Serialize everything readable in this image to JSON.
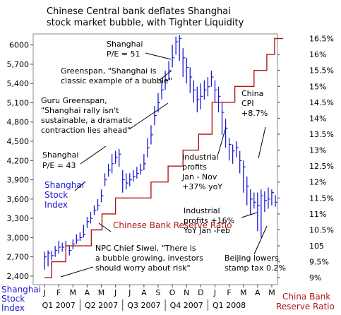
{
  "chart_data": {
    "type": "line",
    "title": "Chinese Central bank deflates Shanghai stock market bubble, with Tighter Liquidity",
    "title_lines": [
      "Chinese Central bank deflates Shanghai",
      "stock market bubble, with Tighter Liquidity"
    ],
    "left_axis": {
      "ticks": [
        "6000",
        "5,700",
        "5,400",
        "5,100",
        "4,800",
        "4,500",
        "4,200",
        "3,900",
        "3,600",
        "3,300",
        "3,000",
        "2,700",
        "2,400"
      ],
      "ylim": [
        2300,
        6150
      ],
      "label_lines": [
        "Shanghai",
        "Stock",
        "Index"
      ]
    },
    "right_axis": {
      "ticks": [
        "16.5%",
        "16%",
        "15.5%",
        "15%",
        "14.5%",
        "14%",
        "13.5%",
        "13%",
        "12.5%",
        "12%",
        "11.5%",
        "11%",
        "10.5%",
        "105",
        "9.5%",
        "9%"
      ],
      "ylim": [
        8.85,
        16.6
      ],
      "label_lines": [
        "China Bank",
        "Reserve Ratio"
      ]
    },
    "x_axis": {
      "months": [
        "J",
        "F",
        "M",
        "A",
        "M",
        "J",
        "J",
        "A",
        "S",
        "O",
        "N",
        "D",
        "J",
        "F",
        "M",
        "A",
        "M"
      ],
      "quarters": [
        "Q1 2007",
        "Q2 2007",
        "Q3 2007",
        "Q4 2007",
        "Q1 2008"
      ]
    },
    "series": [
      {
        "name": "Shanghai Stock Index",
        "color": "#1a1ad0",
        "x": [
          0,
          0.25,
          0.5,
          0.75,
          1,
          1.25,
          1.5,
          1.75,
          2,
          2.25,
          2.5,
          2.75,
          3,
          3.25,
          3.5,
          3.75,
          4,
          4.25,
          4.5,
          4.75,
          5,
          5.25,
          5.5,
          5.75,
          6,
          6.25,
          6.5,
          6.75,
          7,
          7.25,
          7.5,
          7.75,
          8,
          8.25,
          8.5,
          8.75,
          9,
          9.25,
          9.5,
          9.75,
          10,
          10.25,
          10.5,
          10.75,
          11,
          11.25,
          11.5,
          11.75,
          12,
          12.25,
          12.5,
          12.75,
          13,
          13.25,
          13.5,
          13.75,
          14,
          14.25,
          14.5,
          14.75,
          15,
          15.25,
          15.5,
          15.75,
          16,
          16.25
        ],
        "values": [
          2700,
          2760,
          2720,
          2800,
          2850,
          2850,
          2870,
          2800,
          2900,
          2960,
          3000,
          3050,
          3250,
          3300,
          3420,
          3500,
          3650,
          3900,
          4050,
          4150,
          4250,
          4300,
          3900,
          3850,
          3900,
          3950,
          4000,
          4050,
          4150,
          4400,
          4600,
          4900,
          5100,
          5300,
          5450,
          5600,
          5800,
          6050,
          6100,
          5800,
          5650,
          5500,
          5300,
          5150,
          5200,
          5300,
          5350,
          5500,
          5300,
          5200,
          4950,
          4700,
          4450,
          4350,
          4400,
          4200,
          4100,
          3800,
          3600,
          3550,
          3500,
          3650,
          3580,
          3600,
          3700,
          3550
        ],
        "low": [
          2500,
          2550,
          2650,
          2700,
          2750,
          2780,
          2800,
          2720,
          2820,
          2900,
          2950,
          3000,
          3150,
          3220,
          3350,
          3420,
          3550,
          3800,
          3950,
          4000,
          4150,
          4100,
          3700,
          3750,
          3800,
          3870,
          3920,
          3980,
          4050,
          4250,
          4450,
          4750,
          4950,
          5150,
          5300,
          5450,
          5650,
          5850,
          5750,
          5500,
          5400,
          5250,
          5100,
          4950,
          5000,
          5150,
          5200,
          5350,
          5100,
          4950,
          4600,
          4400,
          4200,
          4150,
          4250,
          4000,
          3700,
          3500,
          3350,
          3450,
          3100,
          3000,
          3400,
          3450,
          3500,
          3480
        ],
        "high": [
          2780,
          2800,
          2790,
          2870,
          2950,
          2920,
          2950,
          2880,
          2970,
          3050,
          3080,
          3200,
          3320,
          3400,
          3500,
          3600,
          3750,
          4000,
          4150,
          4300,
          4350,
          4380,
          4050,
          4000,
          4000,
          4050,
          4100,
          4150,
          4300,
          4550,
          4750,
          5050,
          5250,
          5450,
          5600,
          5750,
          6000,
          6130,
          6150,
          5950,
          5800,
          5650,
          5450,
          5350,
          5400,
          5450,
          5500,
          5600,
          5450,
          5350,
          5100,
          4850,
          4550,
          4450,
          4500,
          4350,
          4200,
          3950,
          3750,
          3700,
          3700,
          3750,
          3720,
          3780,
          3750,
          3660
        ]
      },
      {
        "name": "Chinese Bank Reserve Ratio",
        "color": "#b01818",
        "x": [
          0,
          0.5,
          0.5,
          1.5,
          1.5,
          3.3,
          3.3,
          4.05,
          4.05,
          5,
          5,
          7.5,
          7.5,
          8.7,
          8.7,
          9.75,
          9.75,
          10.85,
          10.85,
          11.8,
          11.8,
          13.4,
          13.4,
          14.75,
          14.75,
          15.65,
          15.65,
          16.2,
          16.2,
          16.8
        ],
        "values": [
          9.0,
          9.0,
          9.5,
          9.5,
          10.0,
          10.0,
          10.5,
          10.5,
          11.0,
          11.0,
          11.5,
          11.5,
          12.0,
          12.0,
          12.5,
          12.5,
          13.0,
          13.0,
          13.5,
          13.5,
          14.5,
          14.5,
          15.0,
          15.0,
          15.5,
          15.5,
          16.0,
          16.0,
          16.5,
          16.5
        ]
      }
    ],
    "annotations": {
      "shanghai_pe51": [
        "Shanghai",
        "P/E = 51"
      ],
      "greenspan_bubble": [
        "Greenspan, \"Shanghai is",
        "classic example of a bubble\""
      ],
      "guru_greenspan": [
        "Guru Greenspan,",
        "\"Shanghai rally isn't",
        "sustainable, a dramatic",
        "contraction lies ahead\""
      ],
      "shanghai_pe43": [
        "Shanghai",
        "P/E = 43"
      ],
      "china_cpi": [
        "China",
        "CPI",
        "+8.7%"
      ],
      "industrial_profits_nov": [
        "Industrial",
        "profits",
        "Jan - Nov",
        "+37% yoY"
      ],
      "industrial_profits_feb": [
        "Industrial",
        "profits +16%",
        "YoY Jan -Feb"
      ],
      "npc_chief": [
        "NPC Chief Siwei, \"There is",
        "a bubble growing, investors",
        "should worry about risk\""
      ],
      "beijing_stamp": [
        "Beijing lowers",
        "stamp tax 0.2%"
      ]
    },
    "grid": false
  }
}
